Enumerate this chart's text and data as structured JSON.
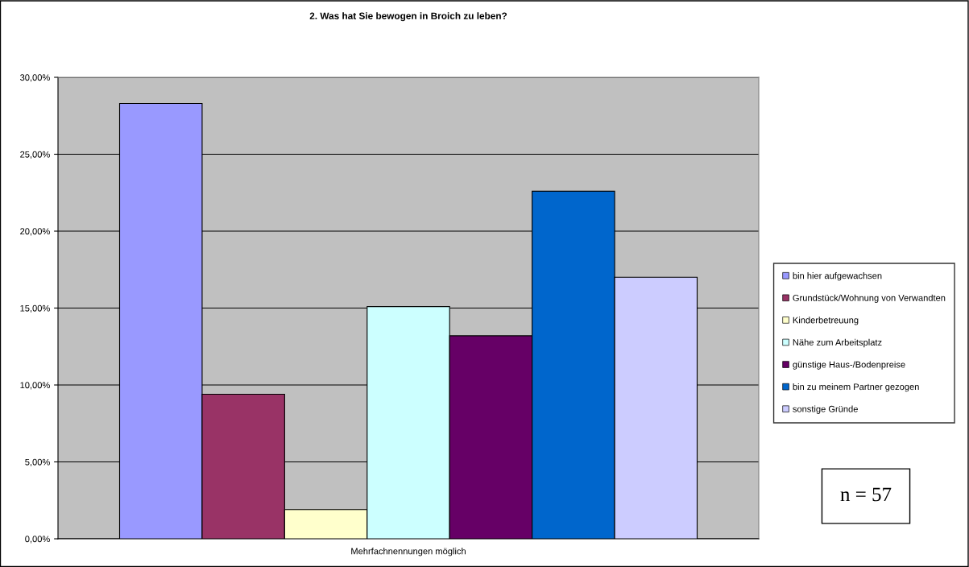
{
  "chart_data": {
    "type": "bar",
    "title": "2. Was hat Sie bewogen in Broich zu leben?",
    "categories": [
      "Mehrfachnennungen möglich"
    ],
    "series": [
      {
        "name": "bin hier aufgewachsen",
        "color": "#9999ff",
        "values": [
          28.3
        ]
      },
      {
        "name": "Grundstück/Wohnung von Verwandten",
        "color": "#993366",
        "values": [
          9.4
        ]
      },
      {
        "name": "Kinderbetreuung",
        "color": "#ffffcc",
        "values": [
          1.9
        ]
      },
      {
        "name": "Nähe zum Arbeitsplatz",
        "color": "#ccffff",
        "values": [
          15.1
        ]
      },
      {
        "name": "günstige Haus-/Bodenpreise",
        "color": "#660066",
        "values": [
          13.2
        ]
      },
      {
        "name": "bin zu meinem Partner gezogen",
        "color": "#0066cc",
        "values": [
          22.6
        ]
      },
      {
        "name": "sonstige Gründe",
        "color": "#ccccff",
        "values": [
          17.0
        ]
      }
    ],
    "ylim": [
      0,
      30
    ],
    "yticks": [
      {
        "value": 0,
        "label": "0,00%"
      },
      {
        "value": 5,
        "label": "5,00%"
      },
      {
        "value": 10,
        "label": "10,00%"
      },
      {
        "value": 15,
        "label": "15,00%"
      },
      {
        "value": 20,
        "label": "20,00%"
      },
      {
        "value": 25,
        "label": "25,00%"
      },
      {
        "value": 30,
        "label": "30,00%"
      }
    ],
    "grid": "y",
    "legend": "right",
    "annotations": [
      "n = 57"
    ]
  }
}
